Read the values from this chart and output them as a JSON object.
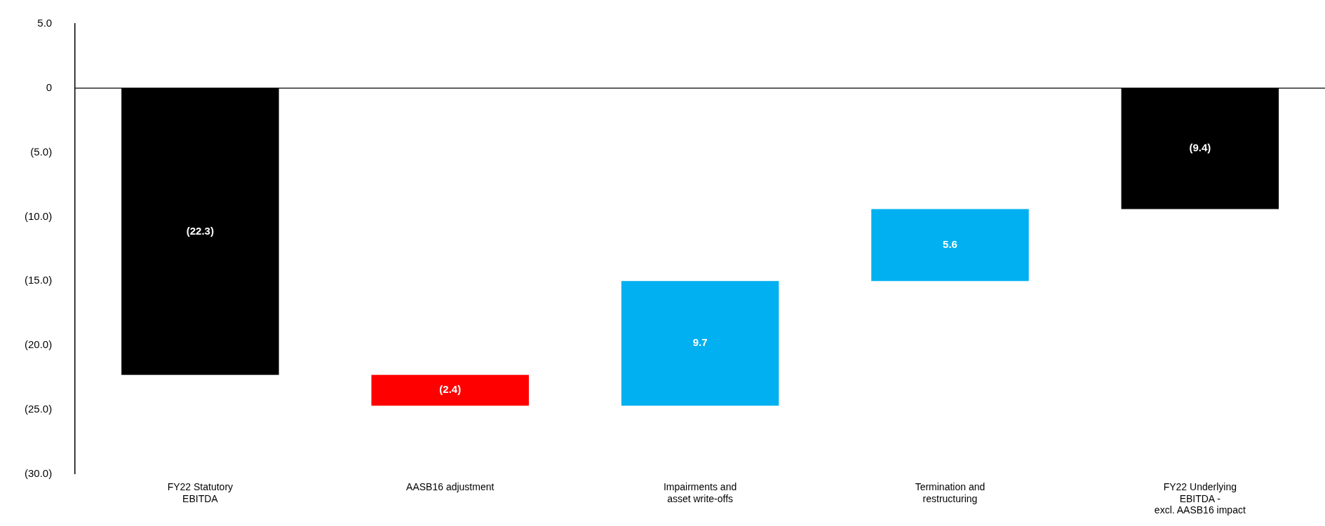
{
  "chart_data": {
    "type": "bar",
    "categories": [
      "FY22 Statutory\nEBITDA",
      "AASB16 adjustment",
      "Impairments and\nasset write-offs",
      "Termination and\nrestructuring",
      "FY22 Underlying\nEBITDA -\nexcl. AASB16 impact"
    ],
    "values": [
      -22.3,
      -2.4,
      9.7,
      5.6,
      -9.4
    ],
    "base": [
      0,
      -22.3,
      -24.7,
      -15.0,
      0
    ],
    "colors": [
      "#000000",
      "#ff0000",
      "#00b0f0",
      "#00b0f0",
      "#000000"
    ],
    "value_labels": [
      "(22.3)",
      "(2.4)",
      "9.7",
      "5.6",
      "(9.4)"
    ],
    "ylim": [
      -30,
      5
    ],
    "yticks": [
      {
        "value": 5,
        "label": "5.0"
      },
      0,
      {
        "value": -5,
        "label": "(5.0)"
      },
      {
        "value": -10,
        "label": "(10.0)"
      },
      {
        "value": -15,
        "label": "(15.0)"
      },
      {
        "value": -20,
        "label": "(20.0)"
      },
      {
        "value": -25,
        "label": "(25.0)"
      },
      {
        "value": -30,
        "label": "(30.0)"
      }
    ],
    "ref_lines": [
      {
        "axis": "y",
        "value": 0,
        "color": "#000000"
      }
    ],
    "grid": false,
    "legend": false
  }
}
